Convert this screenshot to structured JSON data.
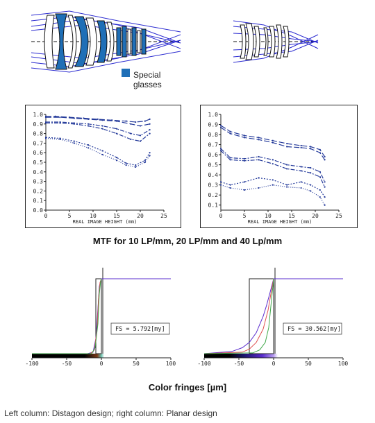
{
  "legend": {
    "label_line1": "Special",
    "label_line2": "glasses",
    "color": "#1f6fb7"
  },
  "mtf_title": "MTF for 10 LP/mm, 20 LP/mm and 40 Lp/mm",
  "fringe_title": "Color fringes [µm]",
  "caption": "Left column: Distagon design; right column: Planar design",
  "colors": {
    "lens_blue": "#1f6fb7",
    "ray_blue": "#2b2bd0",
    "mtf_line": "#243a9a",
    "red": "#e05050",
    "green": "#3fa84a",
    "purple": "#5a2ccf"
  },
  "chart_data": [
    {
      "type": "line",
      "xlabel": "REAL IMAGE HEIGHT (mm)",
      "x_ticks": [
        "0",
        "5",
        "10",
        "15",
        "20",
        "25"
      ],
      "y_ticks": [
        "0.0",
        "0.1",
        "0.2",
        "0.3",
        "0.4",
        "0.5",
        "0.6",
        "0.7",
        "0.8",
        "0.9",
        "1.0"
      ],
      "xlim": [
        0,
        25
      ],
      "ylim": [
        0,
        1
      ],
      "series": [
        {
          "x": [
            0,
            2,
            5,
            8,
            11,
            14,
            17,
            19,
            21,
            22
          ],
          "y": [
            0.98,
            0.98,
            0.97,
            0.96,
            0.95,
            0.94,
            0.93,
            0.92,
            0.93,
            0.95
          ]
        },
        {
          "x": [
            0,
            3,
            6,
            9,
            12,
            15,
            18,
            20,
            22
          ],
          "y": [
            0.97,
            0.97,
            0.96,
            0.95,
            0.94,
            0.93,
            0.9,
            0.88,
            0.9
          ]
        },
        {
          "x": [
            0,
            3,
            6,
            9,
            12,
            15,
            18,
            20,
            22
          ],
          "y": [
            0.92,
            0.92,
            0.91,
            0.9,
            0.88,
            0.85,
            0.8,
            0.78,
            0.84
          ]
        },
        {
          "x": [
            0,
            3,
            6,
            9,
            12,
            15,
            18,
            20,
            22
          ],
          "y": [
            0.91,
            0.91,
            0.9,
            0.88,
            0.85,
            0.8,
            0.74,
            0.72,
            0.8
          ]
        },
        {
          "x": [
            0,
            3,
            6,
            9,
            12,
            15,
            17,
            19,
            21,
            22
          ],
          "y": [
            0.76,
            0.75,
            0.72,
            0.68,
            0.62,
            0.55,
            0.49,
            0.47,
            0.52,
            0.6
          ]
        },
        {
          "x": [
            0,
            3,
            6,
            9,
            12,
            15,
            17,
            19,
            21,
            22
          ],
          "y": [
            0.75,
            0.74,
            0.7,
            0.65,
            0.58,
            0.52,
            0.47,
            0.45,
            0.5,
            0.57
          ]
        }
      ]
    },
    {
      "type": "line",
      "xlabel": "REAL IMAGE HEIGHT (mm)",
      "x_ticks": [
        "0",
        "5",
        "10",
        "15",
        "20",
        "25"
      ],
      "y_ticks": [
        "0.1",
        "0.2",
        "0.3",
        "0.4",
        "0.5",
        "0.6",
        "0.7",
        "0.8",
        "0.9",
        "1.0"
      ],
      "xlim": [
        0,
        25
      ],
      "ylim": [
        0.05,
        1
      ],
      "series": [
        {
          "x": [
            0,
            2,
            5,
            8,
            11,
            14,
            17,
            19,
            21,
            22
          ],
          "y": [
            0.89,
            0.83,
            0.79,
            0.77,
            0.74,
            0.71,
            0.69,
            0.68,
            0.65,
            0.58
          ]
        },
        {
          "x": [
            0,
            2,
            5,
            8,
            11,
            14,
            17,
            19,
            21,
            22
          ],
          "y": [
            0.87,
            0.81,
            0.77,
            0.75,
            0.72,
            0.68,
            0.67,
            0.66,
            0.62,
            0.55
          ]
        },
        {
          "x": [
            0,
            2,
            5,
            8,
            11,
            14,
            17,
            19,
            21,
            22
          ],
          "y": [
            0.66,
            0.57,
            0.56,
            0.58,
            0.55,
            0.5,
            0.48,
            0.47,
            0.43,
            0.33
          ]
        },
        {
          "x": [
            0,
            2,
            5,
            8,
            11,
            14,
            17,
            19,
            21,
            22
          ],
          "y": [
            0.64,
            0.55,
            0.54,
            0.55,
            0.51,
            0.46,
            0.44,
            0.42,
            0.38,
            0.28
          ]
        },
        {
          "x": [
            0,
            2,
            5,
            8,
            11,
            14,
            17,
            19,
            21,
            22
          ],
          "y": [
            0.33,
            0.3,
            0.33,
            0.37,
            0.35,
            0.3,
            0.33,
            0.3,
            0.25,
            0.18
          ]
        },
        {
          "x": [
            0,
            2,
            5,
            8,
            11,
            14,
            17,
            19,
            21,
            22
          ],
          "y": [
            0.3,
            0.27,
            0.25,
            0.27,
            0.3,
            0.28,
            0.27,
            0.24,
            0.18,
            0.1
          ]
        }
      ]
    },
    {
      "type": "line",
      "annotation": "FS = 5.792[my]",
      "x_ticks": [
        "-100",
        "-50",
        "0",
        "50",
        "100"
      ],
      "xlim": [
        -100,
        100
      ],
      "ylim": [
        0,
        1
      ],
      "series": [
        {
          "x": [
            -100,
            -20,
            -12,
            -8,
            -5,
            -3,
            0,
            50,
            100
          ],
          "y": [
            0,
            0.0,
            0.02,
            0.2,
            0.6,
            0.9,
            1,
            1,
            1
          ]
        },
        {
          "x": [
            -100,
            -16,
            -10,
            -6,
            -4,
            -2,
            0
          ],
          "y": [
            0,
            0.0,
            0.05,
            0.35,
            0.75,
            0.95,
            1
          ]
        },
        {
          "x": [
            -100,
            -14,
            -9,
            -5,
            -3,
            -1,
            0
          ],
          "y": [
            0,
            0.0,
            0.08,
            0.4,
            0.8,
            0.97,
            1
          ]
        }
      ]
    },
    {
      "type": "line",
      "annotation": "FS = 30.562[my]",
      "x_ticks": [
        "-100",
        "-50",
        "0",
        "50",
        "100"
      ],
      "xlim": [
        -100,
        100
      ],
      "ylim": [
        0,
        1
      ],
      "series": [
        {
          "x": [
            -100,
            -60,
            -45,
            -35,
            -25,
            -15,
            -10,
            -5,
            0,
            50,
            100
          ],
          "y": [
            0,
            0.03,
            0.08,
            0.15,
            0.28,
            0.5,
            0.65,
            0.82,
            1,
            1,
            1
          ]
        },
        {
          "x": [
            -100,
            -45,
            -35,
            -25,
            -15,
            -8,
            -3,
            0
          ],
          "y": [
            0,
            0.02,
            0.06,
            0.15,
            0.33,
            0.58,
            0.85,
            1
          ]
        },
        {
          "x": [
            -100,
            -30,
            -20,
            -12,
            -7,
            -3,
            0
          ],
          "y": [
            0,
            0.01,
            0.05,
            0.15,
            0.35,
            0.72,
            1
          ]
        }
      ]
    }
  ]
}
